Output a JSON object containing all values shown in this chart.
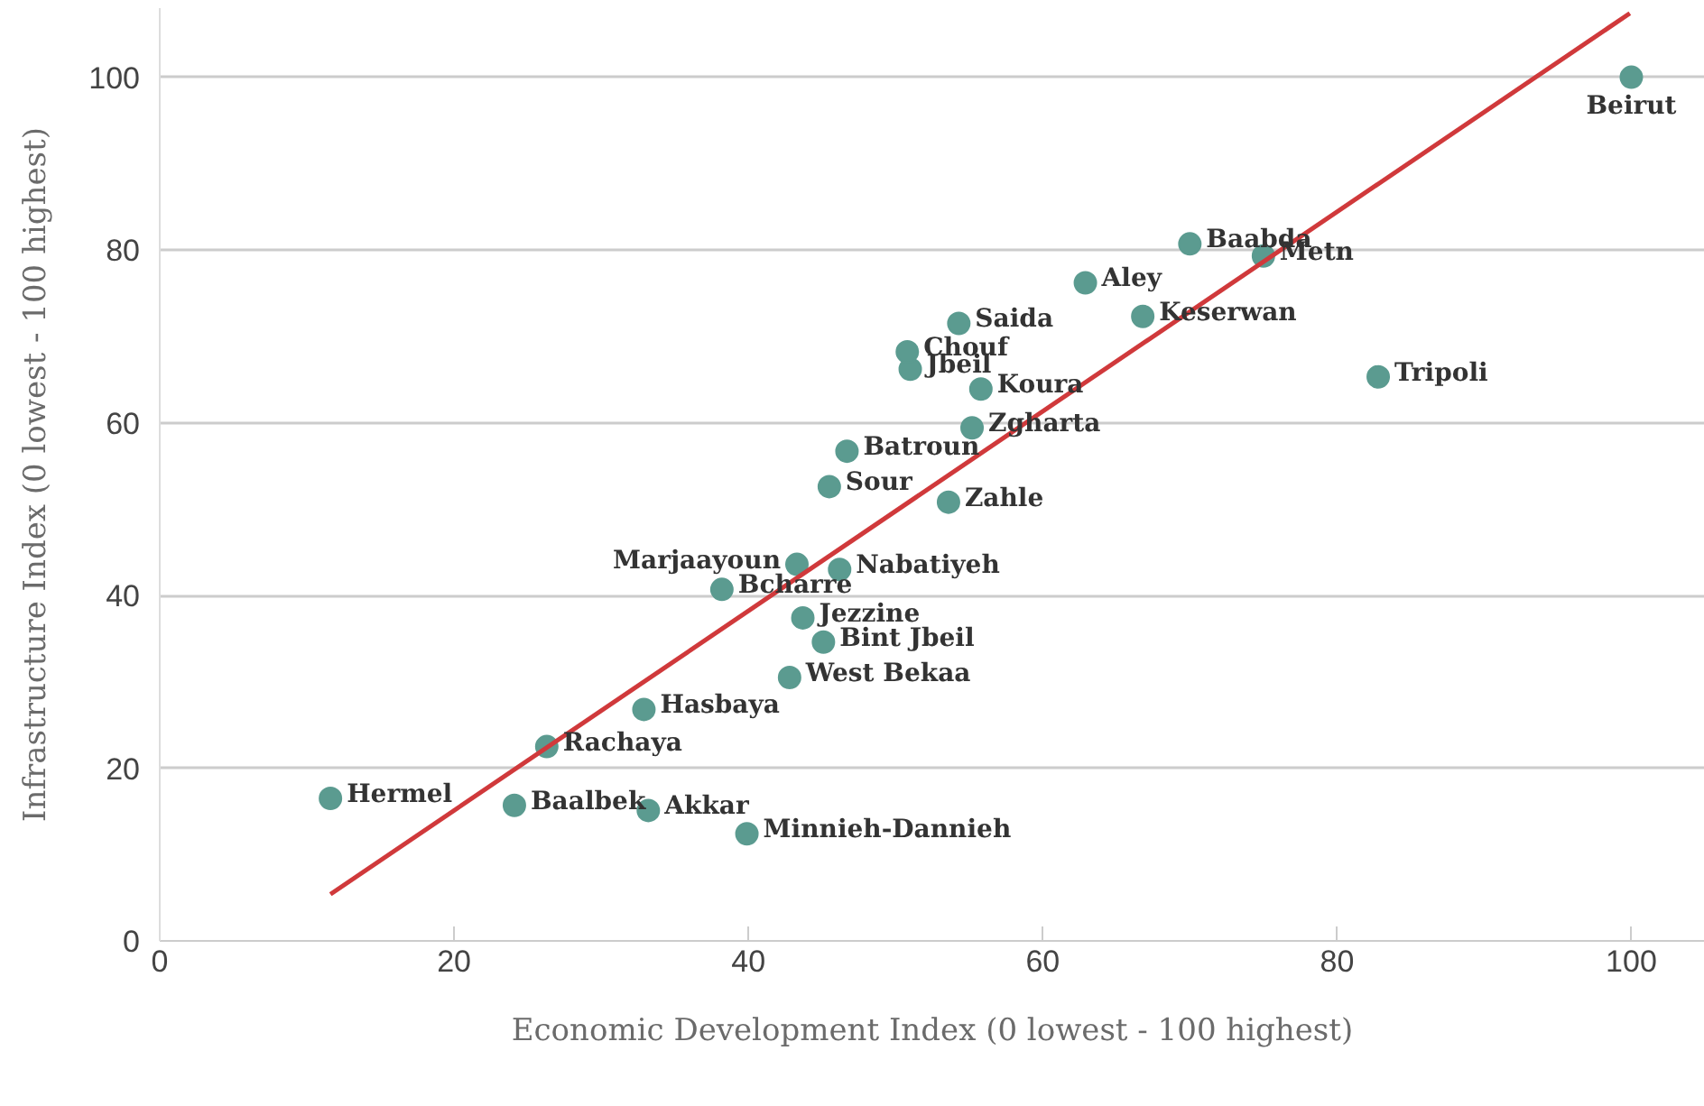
{
  "chart_data": {
    "type": "scatter",
    "xlabel": "Economic Development Index (0 lowest - 100 highest)",
    "ylabel": "Infrastructure Index (0 lowest - 100 highest)",
    "xlim": [
      0,
      105
    ],
    "ylim": [
      0,
      108
    ],
    "xticks": [
      0,
      20,
      40,
      60,
      80,
      100
    ],
    "yticks": [
      0,
      20,
      40,
      60,
      80,
      100
    ],
    "grid": "y",
    "series": [
      {
        "marker": "circle",
        "color": "#5b9b90",
        "x": [
          11.6,
          24.1,
          33.2,
          39.9,
          26.3,
          32.9,
          42.8,
          45.1,
          43.7,
          38.2,
          43.3,
          46.2,
          53.6,
          45.5,
          46.7,
          55.2,
          55.8,
          51.0,
          50.8,
          54.3,
          62.9,
          66.8,
          70.0,
          75.0,
          82.8,
          100
        ],
        "values": [
          16.5,
          15.7,
          15.1,
          12.4,
          22.5,
          26.8,
          30.5,
          34.6,
          37.4,
          40.7,
          43.6,
          43.0,
          50.8,
          52.6,
          56.7,
          59.4,
          63.9,
          66.2,
          68.2,
          71.5,
          76.2,
          72.3,
          80.7,
          79.3,
          65.3,
          100
        ]
      },
      {
        "type": "line",
        "marker": "none",
        "color": "#d0393b",
        "line_style": "solid",
        "x": [
          11.6,
          99.9
        ],
        "values": [
          5.4,
          107.4
        ]
      }
    ],
    "annotations": [
      {
        "text": "Hermel",
        "x": 11.6,
        "y": 16.5
      },
      {
        "text": "Baalbek",
        "x": 24.1,
        "y": 15.7
      },
      {
        "text": "Akkar",
        "x": 33.2,
        "y": 15.1
      },
      {
        "text": "Minnieh-Dannieh",
        "x": 39.9,
        "y": 12.4
      },
      {
        "text": "Rachaya",
        "x": 26.3,
        "y": 22.5
      },
      {
        "text": "Hasbaya",
        "x": 32.9,
        "y": 26.8
      },
      {
        "text": "West Bekaa",
        "x": 42.8,
        "y": 30.5
      },
      {
        "text": "Bint Jbeil",
        "x": 45.1,
        "y": 34.6
      },
      {
        "text": "Jezzine",
        "x": 43.7,
        "y": 37.4
      },
      {
        "text": "Bcharre",
        "x": 38.2,
        "y": 40.7
      },
      {
        "text": "Marjaayoun",
        "x": 43.3,
        "y": 43.6
      },
      {
        "text": "Nabatiyeh",
        "x": 46.2,
        "y": 43.0
      },
      {
        "text": "Zahle",
        "x": 53.6,
        "y": 50.8
      },
      {
        "text": "Sour",
        "x": 45.5,
        "y": 52.6
      },
      {
        "text": "Batroun",
        "x": 46.7,
        "y": 56.7
      },
      {
        "text": "Zgharta",
        "x": 55.2,
        "y": 59.4
      },
      {
        "text": "Koura",
        "x": 55.8,
        "y": 63.9
      },
      {
        "text": "Jbeil",
        "x": 51.0,
        "y": 66.2
      },
      {
        "text": "Chouf",
        "x": 50.8,
        "y": 68.2
      },
      {
        "text": "Saida",
        "x": 54.3,
        "y": 71.5
      },
      {
        "text": "Aley",
        "x": 62.9,
        "y": 76.2
      },
      {
        "text": "Keserwan",
        "x": 66.8,
        "y": 72.3
      },
      {
        "text": "Baabda",
        "x": 70.0,
        "y": 80.7
      },
      {
        "text": "Metn",
        "x": 75.0,
        "y": 79.3
      },
      {
        "text": "Tripoli",
        "x": 82.8,
        "y": 65.3
      },
      {
        "text": "Beirut",
        "x": 100,
        "y": 100
      }
    ]
  }
}
